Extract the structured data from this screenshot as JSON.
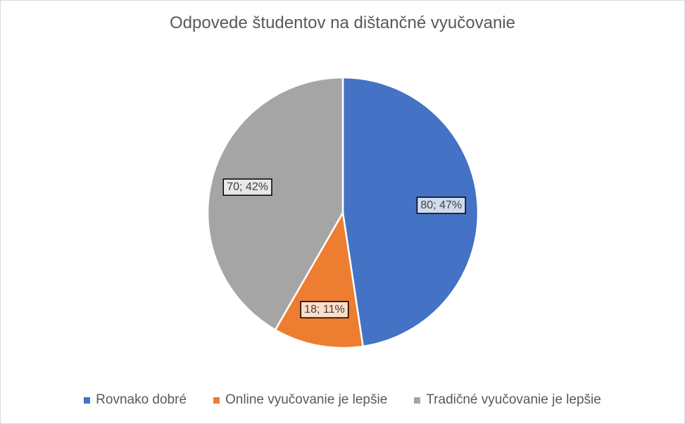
{
  "chart_data": {
    "type": "pie",
    "title": "Odpovede študentov na dištančné vyučovanie",
    "categories": [
      "Rovnako dobré",
      "Online vyučovanie je lepšie",
      "Tradičné vyučovanie je lepšie"
    ],
    "values": [
      80,
      18,
      70
    ],
    "percent_labels": [
      "47%",
      "11%",
      "42%"
    ],
    "data_labels": [
      "80; 47%",
      "18; 11%",
      "70; 42%"
    ],
    "colors": [
      "#4472c4",
      "#ed7d31",
      "#a5a5a5"
    ],
    "start_angle_deg": 0,
    "direction": "clockwise",
    "legend_position": "bottom"
  }
}
